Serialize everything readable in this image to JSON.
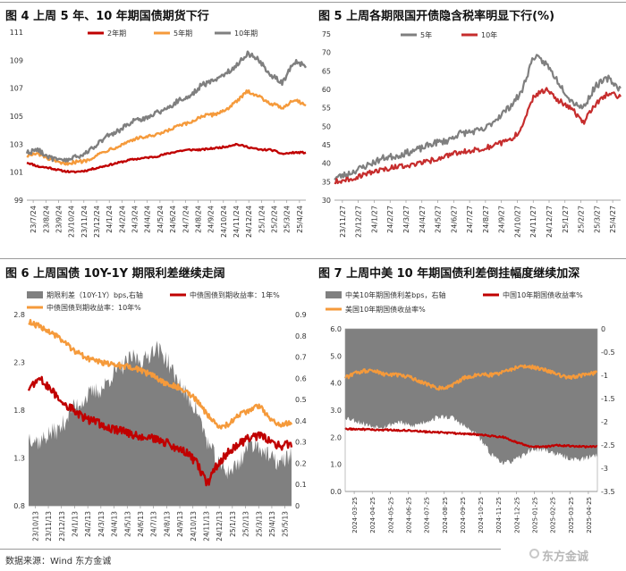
{
  "source_text": "数据来源：Wind 东方金诚",
  "watermark": "东方金诚",
  "chart_data": [
    {
      "type": "line",
      "title": "图 4  上周 5 年、10 年期国债期货下行",
      "ylim": [
        99,
        111
      ],
      "yticks": [
        "99",
        "101",
        "103",
        "105",
        "107",
        "109",
        "111"
      ],
      "ytick_values": [
        99,
        101,
        103,
        105,
        107,
        109,
        111
      ],
      "xticks": [
        "23/7/24",
        "23/8/24",
        "23/9/24",
        "23/10/24",
        "23/11/24",
        "23/12/24",
        "24/1/24",
        "24/2/24",
        "24/3/24",
        "24/4/24",
        "24/5/24",
        "24/6/24",
        "24/7/24",
        "24/8/24",
        "24/9/24",
        "24/10/24",
        "24/11/24",
        "24/12/24",
        "25/1/24",
        "25/2/24",
        "25/3/24",
        "25/4/24"
      ],
      "legend": "top",
      "series": [
        {
          "name": "2年期",
          "color": "#c00000",
          "anchors": [
            101.7,
            101.4,
            101.3,
            101.1,
            101.0,
            101.1,
            101.3,
            101.5,
            101.7,
            101.9,
            102.0,
            102.1,
            102.3,
            102.5,
            102.6,
            102.6,
            102.7,
            102.8,
            103.0,
            102.8,
            102.6,
            102.6,
            102.3,
            102.4,
            102.4
          ]
        },
        {
          "name": "5年期",
          "color": "#f59a3b",
          "anchors": [
            102.2,
            102.3,
            101.9,
            101.6,
            101.7,
            101.8,
            102.2,
            102.6,
            102.9,
            103.3,
            103.5,
            103.6,
            103.9,
            104.3,
            104.5,
            105.0,
            105.1,
            105.4,
            106.0,
            106.8,
            106.4,
            105.9,
            105.6,
            106.2,
            105.8
          ]
        },
        {
          "name": "10年期",
          "color": "#7f7f7f",
          "anchors": [
            102.4,
            102.6,
            102.0,
            101.8,
            102.0,
            102.3,
            103.0,
            103.6,
            104.0,
            104.6,
            104.8,
            105.2,
            105.5,
            106.1,
            106.4,
            107.2,
            107.5,
            108.0,
            108.6,
            109.5,
            109.0,
            107.9,
            107.4,
            108.9,
            108.6
          ]
        }
      ]
    },
    {
      "type": "line",
      "title": "图 5  上周各期限国开债隐含税率明显下行(%)",
      "ylim": [
        30,
        75
      ],
      "yticks": [
        "30",
        "35",
        "40",
        "45",
        "50",
        "55",
        "60",
        "65",
        "70",
        "75"
      ],
      "ytick_values": [
        30,
        35,
        40,
        45,
        50,
        55,
        60,
        65,
        70,
        75
      ],
      "xticks": [
        "23/11/27",
        "23/12/27",
        "24/1/27",
        "24/2/27",
        "24/3/27",
        "24/4/27",
        "24/5/27",
        "24/6/27",
        "24/7/27",
        "24/8/27",
        "24/9/27",
        "24/10/27",
        "24/11/27",
        "24/12/27",
        "25/1/27",
        "25/2/27",
        "25/3/27",
        "25/4/27"
      ],
      "legend": "top",
      "series": [
        {
          "name": "5年",
          "color": "#7f7f7f",
          "anchors": [
            36,
            37,
            38.5,
            40,
            41.5,
            42,
            43,
            44,
            45.5,
            46,
            48,
            48.5,
            49,
            52,
            55,
            59,
            69,
            67,
            62,
            57,
            55,
            61,
            63,
            60
          ]
        },
        {
          "name": "10年",
          "color": "#c62d2d",
          "anchors": [
            35,
            35.5,
            36.5,
            37.5,
            38.5,
            39,
            39.5,
            40,
            41,
            42,
            43,
            43.5,
            44,
            45,
            46,
            49,
            58,
            60,
            57,
            55,
            51,
            56,
            59,
            58
          ]
        }
      ]
    },
    {
      "type": "area",
      "title": "图 6  上周国债 10Y-1Y 期限利差继续走阔",
      "ylim": [
        0.8,
        2.8
      ],
      "yticks": [
        "0.8",
        "1.3",
        "1.8",
        "2.3",
        "2.8"
      ],
      "ytick_values": [
        0.8,
        1.3,
        1.8,
        2.3,
        2.8
      ],
      "y2lim": [
        0,
        0.9
      ],
      "y2ticks": [
        "0",
        "0.1",
        "0.2",
        "0.3",
        "0.4",
        "0.5",
        "0.6",
        "0.7",
        "0.8",
        "0.9"
      ],
      "y2tick_values": [
        0,
        0.1,
        0.2,
        0.3,
        0.4,
        0.5,
        0.6,
        0.7,
        0.8,
        0.9
      ],
      "xticks": [
        "23/10/13",
        "23/11/13",
        "23/12/13",
        "24/1/13",
        "24/2/13",
        "24/3/13",
        "24/4/13",
        "24/5/13",
        "24/6/13",
        "24/7/13",
        "24/8/13",
        "24/9/13",
        "24/10/13",
        "24/11/13",
        "24/12/13",
        "25/1/13",
        "25/2/13",
        "25/3/13",
        "25/4/13",
        "25/5/13"
      ],
      "legend": "top",
      "series": [
        {
          "name": "期限利差（10Y-1Y）bps,右轴",
          "kind": "area",
          "axis": "right",
          "color": "#808080",
          "anchors": [
            0.33,
            0.3,
            0.34,
            0.36,
            0.45,
            0.49,
            0.53,
            0.55,
            0.62,
            0.66,
            0.7,
            0.68,
            0.75,
            0.7,
            0.6,
            0.52,
            0.45,
            0.3,
            0.2,
            0.16,
            0.2,
            0.3,
            0.28,
            0.22,
            0.2,
            0.25
          ]
        },
        {
          "name": "中债国债到期收益率：1年%",
          "kind": "line",
          "axis": "right",
          "color": "#c00000",
          "anchors": [
            0.55,
            0.6,
            0.55,
            0.5,
            0.46,
            0.42,
            0.4,
            0.38,
            0.36,
            0.35,
            0.33,
            0.33,
            0.31,
            0.3,
            0.27,
            0.25,
            0.2,
            0.1,
            0.2,
            0.25,
            0.29,
            0.32,
            0.33,
            0.3,
            0.28,
            0.29
          ]
        },
        {
          "name": "中债国债到期收益率：10年%",
          "kind": "line",
          "axis": "left",
          "color": "#f59a3b",
          "anchors": [
            2.72,
            2.68,
            2.62,
            2.55,
            2.45,
            2.38,
            2.32,
            2.3,
            2.28,
            2.26,
            2.24,
            2.2,
            2.15,
            2.08,
            2.05,
            2.0,
            1.9,
            1.75,
            1.63,
            1.65,
            1.75,
            1.8,
            1.85,
            1.7,
            1.65,
            1.67
          ]
        }
      ]
    },
    {
      "type": "area",
      "title": "图 7  上周中美 10 年期国债利差倒挂幅度继续加深",
      "ylim": [
        0,
        6
      ],
      "yticks": [
        "0.0",
        "1.0",
        "2.0",
        "3.0",
        "4.0",
        "5.0",
        "6.0"
      ],
      "ytick_values": [
        0,
        1,
        2,
        3,
        4,
        5,
        6
      ],
      "y2lim": [
        -3.5,
        0
      ],
      "y2ticks": [
        "0",
        "-0.5",
        "-1",
        "-1.5",
        "-2",
        "-2.5",
        "-3",
        "-3.5"
      ],
      "y2tick_values": [
        0,
        -0.5,
        -1,
        -1.5,
        -2,
        -2.5,
        -3,
        -3.5
      ],
      "xticks": [
        "2024-03-25",
        "2024-04-25",
        "2024-05-25",
        "2024-06-25",
        "2024-07-25",
        "2024-08-25",
        "2024-09-25",
        "2024-10-25",
        "2024-11-25",
        "2024-12-25",
        "2025-01-25",
        "2025-02-25",
        "2025-03-25",
        "2025-04-25"
      ],
      "legend": "top",
      "series": [
        {
          "name": "中美10年期国债利差bps，右轴",
          "kind": "area",
          "axis": "right",
          "color": "#808080",
          "anchors": [
            -1.9,
            -2.0,
            -2.1,
            -2.1,
            -2.0,
            -2.1,
            -2.0,
            -1.9,
            -1.9,
            -2.1,
            -2.3,
            -2.7,
            -2.9,
            -2.8,
            -2.6,
            -2.6,
            -2.7,
            -2.8,
            -2.8,
            -2.7
          ]
        },
        {
          "name": "中国10年期国债收益率%",
          "kind": "line",
          "axis": "left",
          "color": "#c00000",
          "anchors": [
            2.3,
            2.3,
            2.28,
            2.27,
            2.26,
            2.25,
            2.2,
            2.18,
            2.15,
            2.13,
            2.1,
            2.05,
            2.0,
            1.8,
            1.65,
            1.65,
            1.7,
            1.68,
            1.65,
            1.66
          ]
        },
        {
          "name": "美国10年期国债收益率%",
          "kind": "line",
          "axis": "left",
          "color": "#f59a3b",
          "anchors": [
            4.2,
            4.4,
            4.5,
            4.3,
            4.3,
            4.2,
            4.0,
            3.8,
            3.9,
            4.2,
            4.3,
            4.3,
            4.4,
            4.6,
            4.6,
            4.5,
            4.3,
            4.2,
            4.3,
            4.4
          ]
        }
      ]
    }
  ]
}
